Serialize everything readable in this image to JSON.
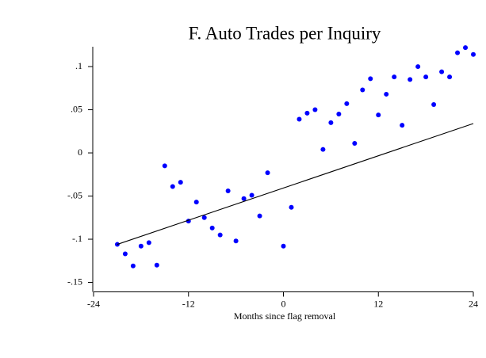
{
  "chart_data": {
    "type": "scatter",
    "title": "F. Auto Trades per Inquiry",
    "xlabel": "Months since flag removal",
    "x": [
      -21,
      -20,
      -19,
      -18,
      -17,
      -16,
      -15,
      -14,
      -13,
      -12,
      -11,
      -10,
      -9,
      -8,
      -7,
      -6,
      -5,
      -4,
      -3,
      -2,
      0,
      1,
      2,
      3,
      4,
      5,
      6,
      7,
      8,
      9,
      10,
      11,
      12,
      13,
      14,
      15,
      16,
      17,
      18,
      19,
      20,
      21,
      22,
      23,
      24
    ],
    "series": [
      {
        "color": "#0000ff",
        "values": [
          -0.106,
          -0.117,
          -0.131,
          -0.108,
          -0.104,
          -0.13,
          -0.015,
          -0.039,
          -0.034,
          -0.079,
          -0.057,
          -0.075,
          -0.087,
          -0.095,
          -0.044,
          -0.102,
          -0.053,
          -0.049,
          -0.073,
          -0.023,
          -0.108,
          -0.063,
          0.039,
          0.046,
          0.05,
          0.004,
          0.035,
          0.045,
          0.057,
          0.011,
          0.073,
          0.086,
          0.044,
          0.068,
          0.088,
          0.032,
          0.085,
          0.1,
          0.088,
          0.056,
          0.094,
          0.088,
          0.116,
          0.122,
          0.114
        ]
      }
    ],
    "fit": {
      "color": "#000000",
      "x": [
        -21,
        24
      ],
      "y": [
        -0.106,
        0.034
      ]
    },
    "xlim": [
      -24,
      24
    ],
    "xticks": [
      -24,
      -12,
      0,
      12,
      24
    ],
    "ylim": [
      -0.161,
      0.123
    ],
    "yticks": [
      {
        "value": 0.1,
        "label": ".1"
      },
      {
        "value": 0.05,
        "label": ".05"
      },
      {
        "value": 0,
        "label": "0"
      },
      {
        "value": -0.05,
        "label": "-.05"
      },
      {
        "value": -0.1,
        "label": "-.1"
      },
      {
        "value": -0.15,
        "label": "-.15"
      }
    ]
  }
}
